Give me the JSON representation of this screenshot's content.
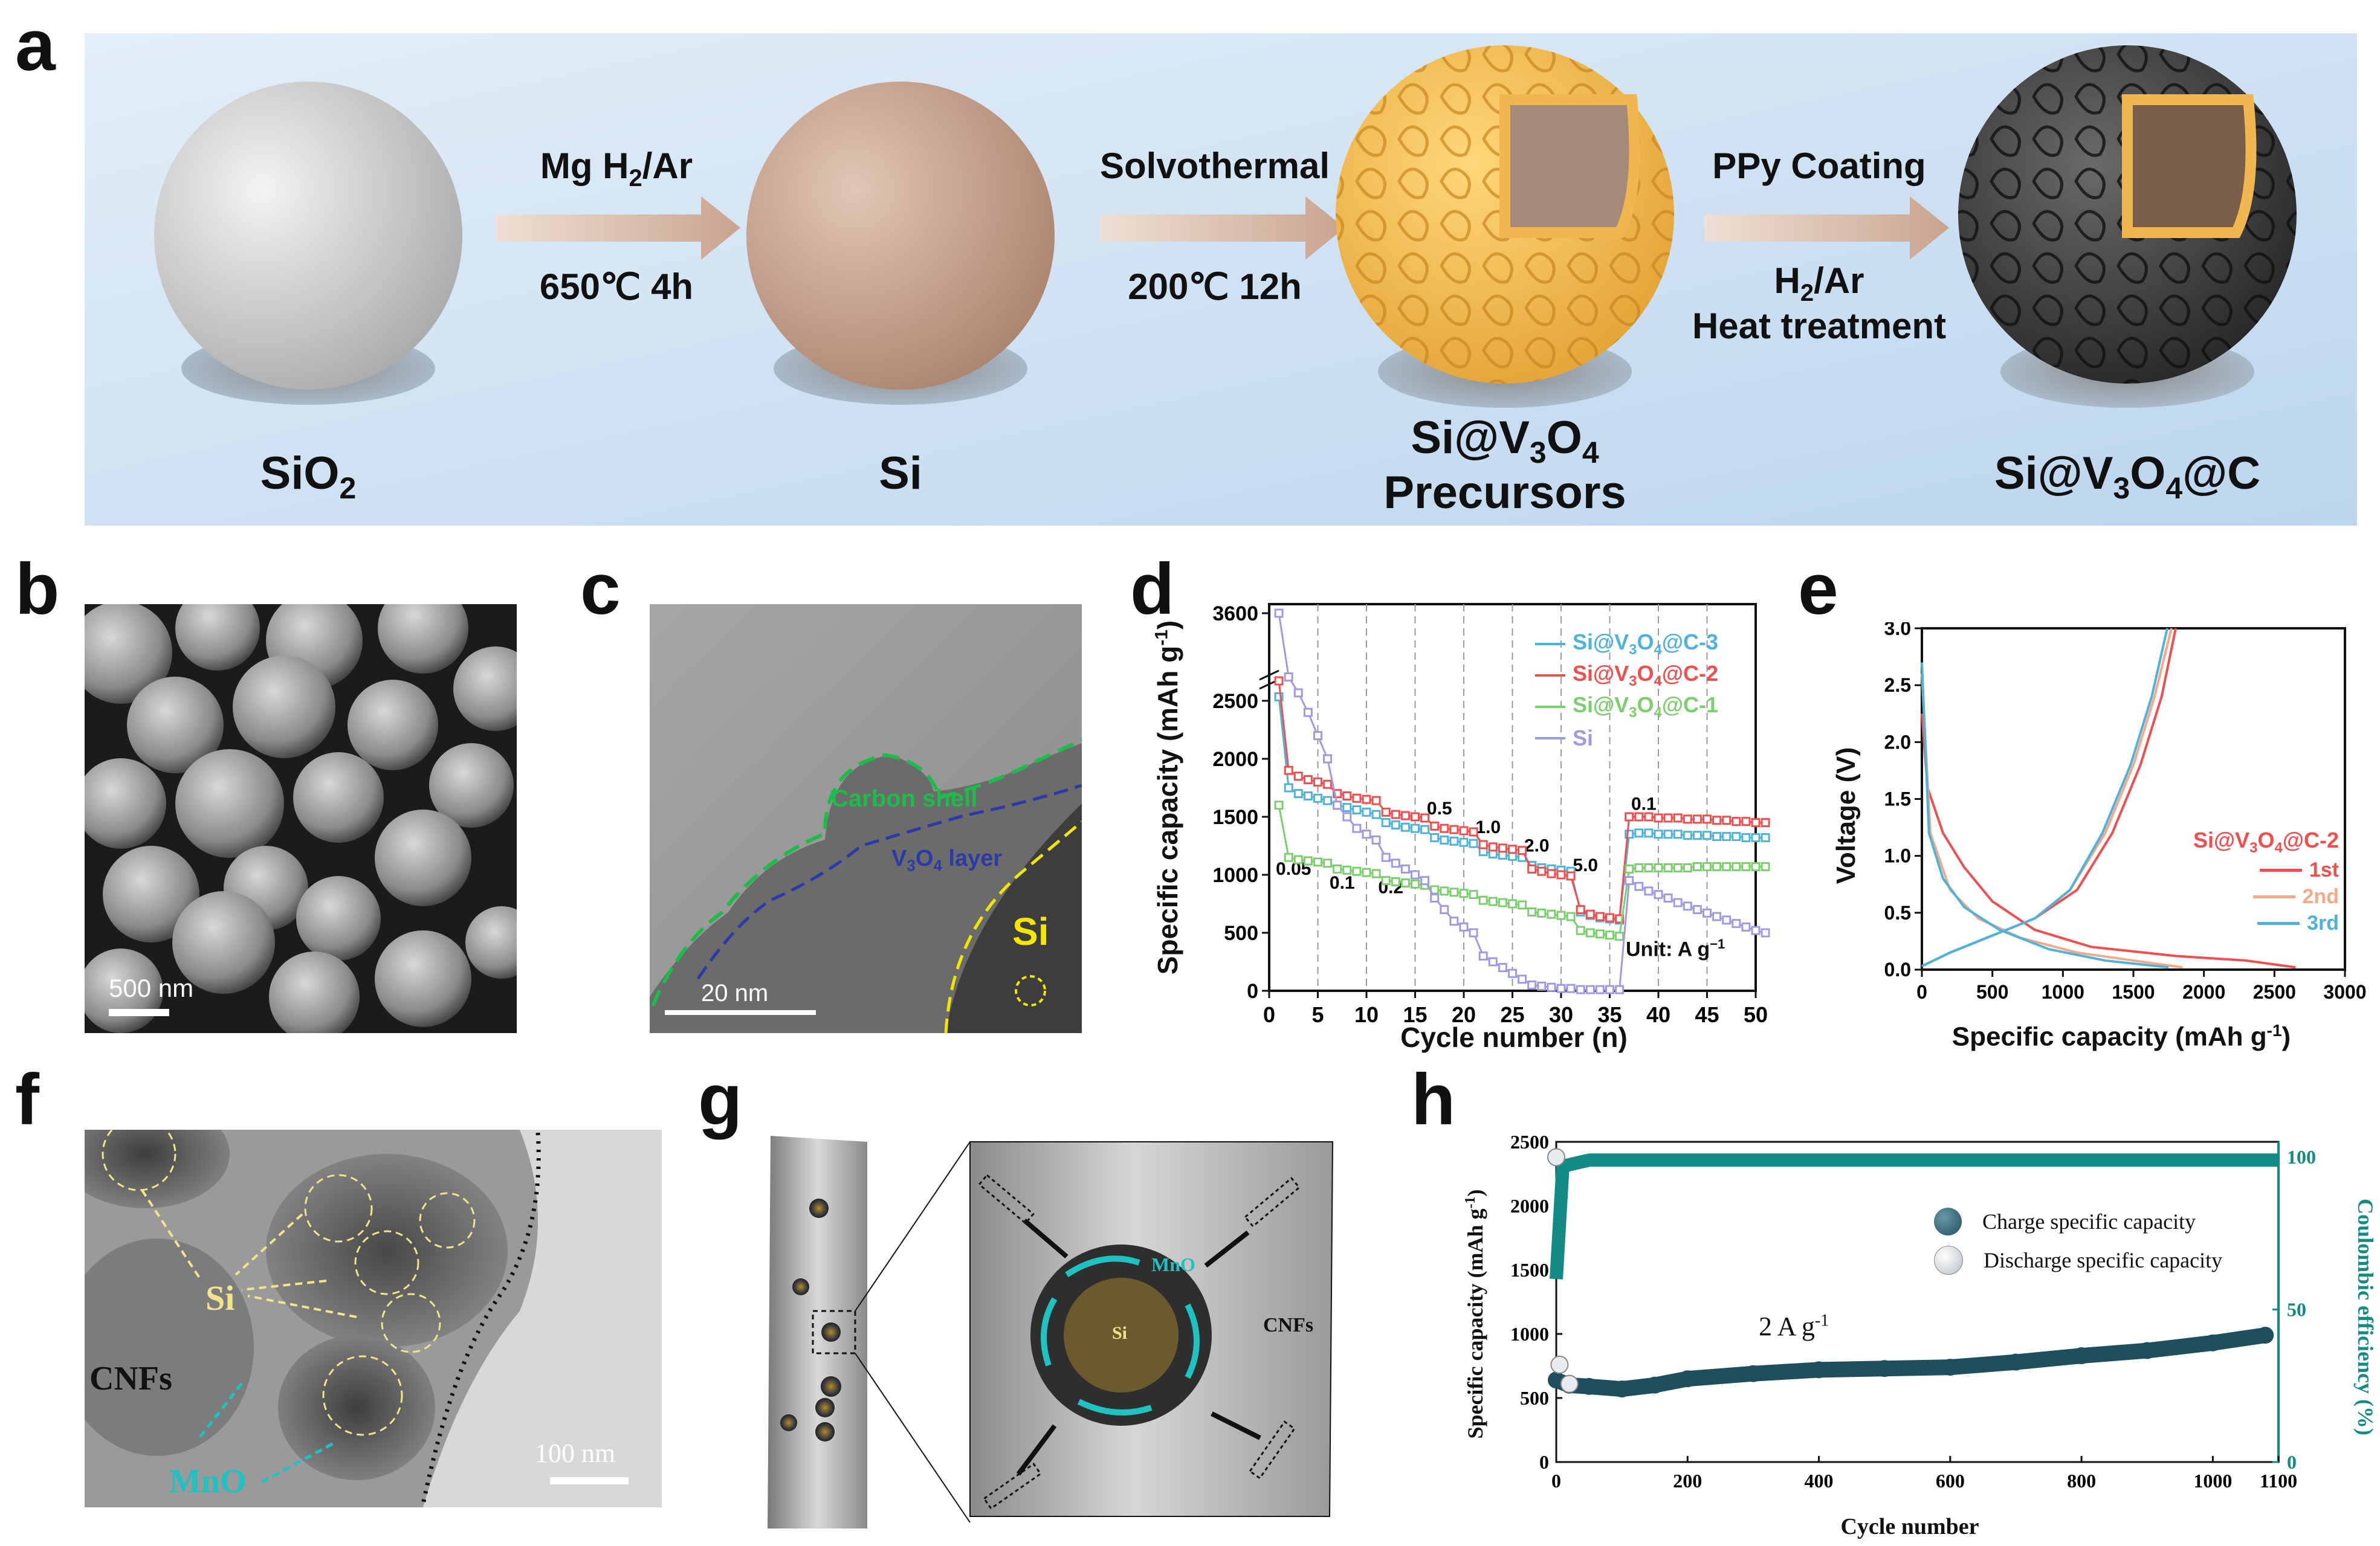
{
  "panel_labels": {
    "a": "a",
    "b": "b",
    "c": "c",
    "d": "d",
    "e": "e",
    "f": "f",
    "g": "g",
    "h": "h"
  },
  "panel_a": {
    "materials": [
      {
        "name": "SiO",
        "sub": "2",
        "sub2": "",
        "name_line2": ""
      },
      {
        "name": "Si",
        "sub": "",
        "sub2": "",
        "name_line2": ""
      },
      {
        "name": "Si@V",
        "sub": "3",
        "mid": "O",
        "sub2": "4",
        "name_line2": "Precursors"
      },
      {
        "name": "Si@V",
        "sub": "3",
        "mid": "O",
        "sub2": "4",
        "tail": "@C",
        "name_line2": ""
      }
    ],
    "steps": [
      {
        "top": "Mg H",
        "top_sub": "2",
        "top_tail": "/Ar",
        "bottom": "650℃ 4h",
        "bottom2": ""
      },
      {
        "top": "Solvothermal",
        "top_sub": "",
        "top_tail": "",
        "bottom": "200℃ 12h",
        "bottom2": ""
      },
      {
        "top": "PPy Coating",
        "top_sub": "",
        "top_tail": "",
        "bottom": "H",
        "bottom_sub": "2",
        "bottom_tail": "/Ar",
        "bottom2": "Heat treatment"
      }
    ],
    "colors": {
      "bg": "#cfe2f3",
      "sio2": "#c8c8c8",
      "si": "#c9a48f",
      "precursor": "#f2b74a",
      "coated": "#3a3a3a",
      "arrow": "#d8b9a4"
    }
  },
  "panel_b": {
    "scale_bar": "500 nm"
  },
  "panel_c": {
    "scale_bar": "20 nm",
    "carbon_shell": "Carbon shell",
    "v3o4_layer": "V",
    "v3o4_sub1": "3",
    "v3o4_o": "O",
    "v3o4_sub2": "4",
    "v3o4_tail": " layer",
    "si_label": "Si"
  },
  "panel_f": {
    "si_label": "Si",
    "cnfs_label": "CNFs",
    "mno_label": "MnO",
    "scale_bar": "100 nm"
  },
  "panel_g": {
    "mno_label": "MnO",
    "si_label": "Si",
    "cnfs_label": "CNFs"
  },
  "chart_d": {
    "type": "line",
    "ylabel": "Specific capacity (mAh g",
    "ylabel_sup": "-1",
    "ylabel_tail": ")",
    "xlabel": "Cycle number (n)",
    "xlim": [
      0,
      50
    ],
    "ylim": [
      0,
      3600
    ],
    "xticks": [
      0,
      5,
      10,
      15,
      20,
      25,
      30,
      35,
      40,
      45,
      50
    ],
    "yticks": [
      0,
      500,
      1000,
      1500,
      2000,
      2500,
      3600
    ],
    "axis_break": true,
    "unit_label": "Unit: A g",
    "unit_sup": "−1",
    "rate_labels": [
      "0.05",
      "0.1",
      "0.2",
      "0.5",
      "1.0",
      "2.0",
      "5.0",
      "0.1"
    ],
    "series": [
      {
        "name": "Si@V3O4@C-3",
        "color": "#4fb3d9",
        "values": [
          2550,
          1750,
          1700,
          1680,
          1660,
          1640,
          1600,
          1580,
          1560,
          1540,
          1520,
          1450,
          1430,
          1410,
          1400,
          1390,
          1320,
          1300,
          1290,
          1280,
          1270,
          1200,
          1180,
          1170,
          1160,
          1150,
          1080,
          1060,
          1050,
          1040,
          1030,
          680,
          650,
          630,
          620,
          610,
          1350,
          1360,
          1360,
          1350,
          1350,
          1350,
          1340,
          1340,
          1340,
          1330,
          1330,
          1330,
          1320,
          1320,
          1320
        ]
      },
      {
        "name": "Si@V3O4@C-2",
        "color": "#ef4f4f",
        "values": [
          2750,
          1900,
          1850,
          1820,
          1800,
          1780,
          1700,
          1680,
          1660,
          1650,
          1640,
          1540,
          1520,
          1510,
          1500,
          1490,
          1420,
          1400,
          1390,
          1380,
          1370,
          1260,
          1240,
          1230,
          1220,
          1210,
          1050,
          1030,
          1010,
          1000,
          990,
          700,
          660,
          640,
          630,
          620,
          1500,
          1500,
          1500,
          1490,
          1490,
          1490,
          1480,
          1480,
          1480,
          1470,
          1470,
          1460,
          1460,
          1450,
          1450
        ]
      },
      {
        "name": "Si@V3O4@C-1",
        "color": "#7dce6f",
        "values": [
          1600,
          1150,
          1130,
          1120,
          1110,
          1100,
          1050,
          1040,
          1030,
          1020,
          1010,
          950,
          940,
          930,
          920,
          910,
          870,
          860,
          850,
          840,
          830,
          780,
          770,
          760,
          750,
          740,
          680,
          670,
          660,
          650,
          640,
          520,
          500,
          490,
          480,
          470,
          1050,
          1060,
          1060,
          1060,
          1060,
          1060,
          1060,
          1070,
          1070,
          1070,
          1070,
          1070,
          1070,
          1070,
          1070
        ]
      },
      {
        "name": "Si",
        "color": "#9f9be0",
        "values": [
          3600,
          2800,
          2600,
          2400,
          2200,
          2000,
          1600,
          1500,
          1400,
          1350,
          1300,
          1150,
          1100,
          1050,
          1000,
          950,
          800,
          700,
          600,
          550,
          500,
          300,
          250,
          200,
          150,
          100,
          50,
          40,
          30,
          20,
          20,
          10,
          10,
          10,
          10,
          10,
          950,
          900,
          860,
          830,
          800,
          760,
          730,
          700,
          670,
          640,
          610,
          580,
          550,
          520,
          500
        ]
      }
    ]
  },
  "chart_e": {
    "type": "line",
    "ylabel": "Voltage (V)",
    "xlabel": "Specific capacity (mAh g",
    "xlabel_sup": "-1",
    "xlabel_tail": ")",
    "xlim": [
      0,
      3000
    ],
    "ylim": [
      0,
      3.0
    ],
    "xticks": [
      0,
      500,
      1000,
      1500,
      2000,
      2500,
      3000
    ],
    "yticks": [
      0.0,
      0.5,
      1.0,
      1.5,
      2.0,
      2.5,
      3.0
    ],
    "legend_title": "Si@V",
    "legend_title_sub1": "3",
    "legend_title_o": "O",
    "legend_title_sub2": "4",
    "legend_title_tail": "@C-2",
    "series": [
      {
        "name": "1st",
        "color": "#ef4f4f",
        "discharge": [
          [
            0,
            2.25
          ],
          [
            40,
            1.6
          ],
          [
            150,
            1.2
          ],
          [
            300,
            0.9
          ],
          [
            500,
            0.6
          ],
          [
            800,
            0.35
          ],
          [
            1200,
            0.2
          ],
          [
            1800,
            0.12
          ],
          [
            2300,
            0.08
          ],
          [
            2650,
            0.02
          ]
        ],
        "charge": [
          [
            0,
            0.03
          ],
          [
            200,
            0.15
          ],
          [
            500,
            0.3
          ],
          [
            800,
            0.45
          ],
          [
            1100,
            0.7
          ],
          [
            1350,
            1.2
          ],
          [
            1550,
            1.8
          ],
          [
            1700,
            2.4
          ],
          [
            1800,
            3.0
          ]
        ]
      },
      {
        "name": "2nd",
        "color": "#f4a98a",
        "discharge": [
          [
            0,
            2.6
          ],
          [
            60,
            1.2
          ],
          [
            200,
            0.7
          ],
          [
            400,
            0.45
          ],
          [
            700,
            0.28
          ],
          [
            1100,
            0.15
          ],
          [
            1500,
            0.08
          ],
          [
            1850,
            0.02
          ]
        ],
        "charge": [
          [
            0,
            0.03
          ],
          [
            200,
            0.15
          ],
          [
            500,
            0.3
          ],
          [
            800,
            0.45
          ],
          [
            1050,
            0.7
          ],
          [
            1300,
            1.2
          ],
          [
            1500,
            1.8
          ],
          [
            1650,
            2.4
          ],
          [
            1770,
            3.0
          ]
        ]
      },
      {
        "name": "3rd",
        "color": "#4fb3d9",
        "discharge": [
          [
            0,
            2.7
          ],
          [
            50,
            1.2
          ],
          [
            150,
            0.8
          ],
          [
            300,
            0.55
          ],
          [
            550,
            0.35
          ],
          [
            900,
            0.18
          ],
          [
            1300,
            0.08
          ],
          [
            1750,
            0.02
          ]
        ],
        "charge": [
          [
            0,
            0.03
          ],
          [
            200,
            0.15
          ],
          [
            500,
            0.3
          ],
          [
            800,
            0.45
          ],
          [
            1050,
            0.7
          ],
          [
            1280,
            1.2
          ],
          [
            1480,
            1.8
          ],
          [
            1630,
            2.4
          ],
          [
            1740,
            3.0
          ]
        ]
      }
    ]
  },
  "chart_h": {
    "type": "scatter",
    "ylabel": "Specific capacity (mAh g",
    "ylabel_sup": "-1",
    "ylabel_tail": ")",
    "y2label": "Coulombic efficiency (%)",
    "xlabel": "Cycle number",
    "xlim": [
      0,
      1100
    ],
    "ylim": [
      0,
      2500
    ],
    "y2lim": [
      0,
      105
    ],
    "xticks": [
      0,
      200,
      400,
      600,
      800,
      1000,
      1100
    ],
    "yticks": [
      0,
      500,
      1000,
      1500,
      2000,
      2500
    ],
    "y2ticks": [
      0,
      50,
      100
    ],
    "annotation": "2 A g",
    "annotation_sup": "-1",
    "series": [
      {
        "name": "Charge specific capacity",
        "color": "#1f4e5f",
        "x": [
          0,
          20,
          50,
          100,
          150,
          200,
          300,
          400,
          500,
          600,
          700,
          800,
          900,
          1000,
          1080
        ],
        "values": [
          640,
          600,
          590,
          570,
          600,
          650,
          690,
          720,
          730,
          740,
          780,
          830,
          870,
          930,
          990
        ]
      },
      {
        "name": "Discharge specific capacity",
        "color": "#e9ecef",
        "x": [
          0,
          5,
          20
        ],
        "values": [
          2380,
          760,
          610
        ]
      },
      {
        "name": "Coulombic efficiency",
        "color": "#138a84",
        "x": [
          0,
          10,
          50,
          100,
          300,
          500,
          700,
          900,
          1100
        ],
        "values": [
          60,
          97,
          99,
          99,
          99,
          99,
          99,
          99,
          99
        ]
      }
    ]
  }
}
